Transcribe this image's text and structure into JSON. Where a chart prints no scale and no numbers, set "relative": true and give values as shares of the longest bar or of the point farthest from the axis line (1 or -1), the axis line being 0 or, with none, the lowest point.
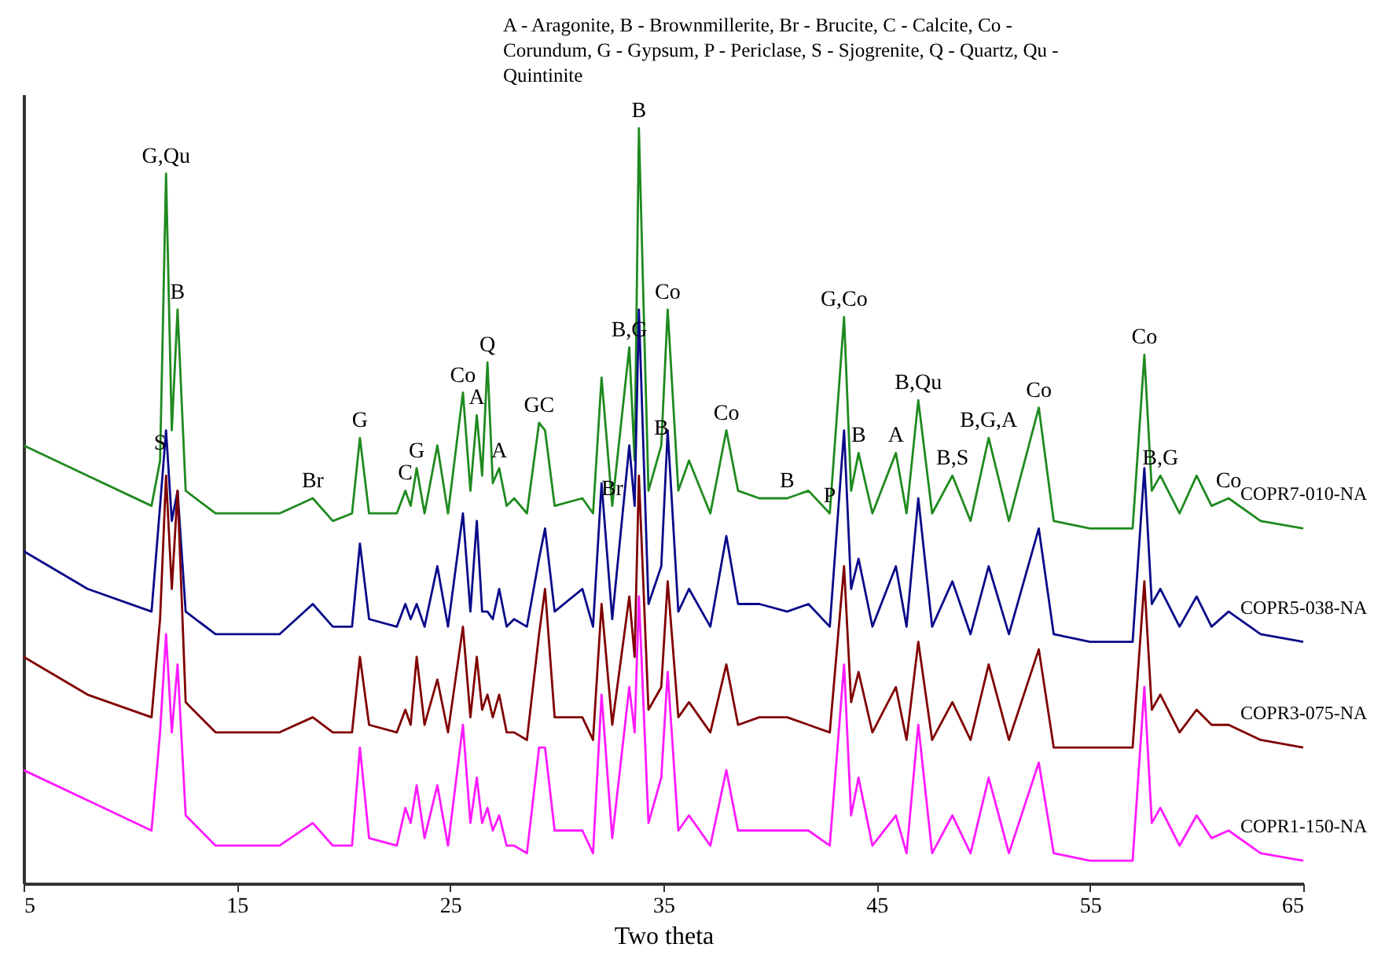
{
  "chart_data": {
    "type": "line",
    "relative": true,
    "xlabel": "Two theta",
    "xlim": [
      5,
      65
    ],
    "xticks": [
      5,
      15,
      25,
      35,
      45,
      55,
      65
    ],
    "grid": false,
    "line_style": "solid",
    "x": [
      5,
      8,
      11,
      11.4,
      11.68,
      11.95,
      12.22,
      12.6,
      14,
      17,
      18.56,
      19.5,
      20.4,
      20.77,
      21.2,
      22.5,
      22.9,
      23.15,
      23.43,
      23.8,
      24.4,
      24.9,
      25.6,
      25.95,
      26.25,
      26.5,
      26.75,
      27.0,
      27.3,
      27.65,
      28.0,
      28.6,
      29.17,
      29.45,
      29.9,
      31.2,
      31.7,
      32.1,
      32.6,
      33.4,
      33.65,
      33.85,
      34.3,
      34.9,
      35.2,
      35.7,
      36.2,
      37.2,
      37.95,
      38.5,
      39.5,
      40.8,
      41.8,
      42.8,
      43.47,
      43.8,
      44.15,
      44.8,
      45.9,
      46.4,
      46.95,
      47.6,
      48.55,
      49.4,
      50.25,
      51.2,
      52.6,
      53.3,
      55,
      57,
      57.55,
      57.9,
      58.3,
      59.2,
      60.0,
      60.7,
      61.5,
      63,
      65
    ],
    "series": [
      {
        "name": "COPR7-010-NA",
        "color": "#1f8a1f",
        "values": [
          0.58,
          0.54,
          0.5,
          0.56,
          0.94,
          0.6,
          0.76,
          0.52,
          0.49,
          0.49,
          0.51,
          0.48,
          0.49,
          0.59,
          0.49,
          0.49,
          0.52,
          0.5,
          0.55,
          0.49,
          0.58,
          0.49,
          0.65,
          0.52,
          0.62,
          0.54,
          0.69,
          0.53,
          0.55,
          0.5,
          0.51,
          0.49,
          0.61,
          0.6,
          0.5,
          0.51,
          0.49,
          0.67,
          0.5,
          0.71,
          0.56,
          1.0,
          0.52,
          0.58,
          0.76,
          0.52,
          0.56,
          0.49,
          0.6,
          0.52,
          0.51,
          0.51,
          0.52,
          0.49,
          0.75,
          0.52,
          0.57,
          0.49,
          0.57,
          0.49,
          0.64,
          0.49,
          0.54,
          0.48,
          0.59,
          0.48,
          0.63,
          0.48,
          0.47,
          0.47,
          0.7,
          0.52,
          0.54,
          0.49,
          0.54,
          0.5,
          0.51,
          0.48,
          0.47
        ]
      },
      {
        "name": "COPR5-038-NA",
        "color": "#0a0a8a",
        "values": [
          0.44,
          0.39,
          0.36,
          0.5,
          0.6,
          0.48,
          0.52,
          0.36,
          0.33,
          0.33,
          0.37,
          0.34,
          0.34,
          0.45,
          0.35,
          0.34,
          0.37,
          0.35,
          0.37,
          0.34,
          0.42,
          0.34,
          0.49,
          0.36,
          0.48,
          0.36,
          0.36,
          0.35,
          0.39,
          0.34,
          0.35,
          0.34,
          0.43,
          0.47,
          0.36,
          0.39,
          0.34,
          0.53,
          0.35,
          0.58,
          0.5,
          0.76,
          0.37,
          0.42,
          0.6,
          0.36,
          0.39,
          0.34,
          0.46,
          0.37,
          0.37,
          0.36,
          0.37,
          0.34,
          0.6,
          0.39,
          0.43,
          0.34,
          0.42,
          0.34,
          0.51,
          0.34,
          0.4,
          0.33,
          0.42,
          0.33,
          0.47,
          0.33,
          0.32,
          0.32,
          0.55,
          0.37,
          0.39,
          0.34,
          0.38,
          0.34,
          0.36,
          0.33,
          0.32
        ]
      },
      {
        "name": "COPR3-075-NA",
        "color": "#800000",
        "values": [
          0.3,
          0.25,
          0.22,
          0.35,
          0.54,
          0.39,
          0.52,
          0.24,
          0.2,
          0.2,
          0.22,
          0.2,
          0.2,
          0.3,
          0.21,
          0.2,
          0.23,
          0.21,
          0.3,
          0.21,
          0.27,
          0.2,
          0.34,
          0.22,
          0.3,
          0.23,
          0.25,
          0.22,
          0.25,
          0.2,
          0.2,
          0.19,
          0.33,
          0.39,
          0.22,
          0.22,
          0.19,
          0.37,
          0.21,
          0.38,
          0.3,
          0.54,
          0.23,
          0.26,
          0.4,
          0.22,
          0.24,
          0.2,
          0.29,
          0.21,
          0.22,
          0.22,
          0.21,
          0.2,
          0.42,
          0.24,
          0.28,
          0.2,
          0.26,
          0.19,
          0.32,
          0.19,
          0.24,
          0.19,
          0.29,
          0.19,
          0.31,
          0.18,
          0.18,
          0.18,
          0.4,
          0.23,
          0.25,
          0.2,
          0.23,
          0.21,
          0.21,
          0.19,
          0.18
        ]
      },
      {
        "name": "COPR1-150-NA",
        "color": "#ff1aff",
        "values": [
          0.15,
          0.11,
          0.07,
          0.2,
          0.33,
          0.2,
          0.29,
          0.09,
          0.05,
          0.05,
          0.08,
          0.05,
          0.05,
          0.18,
          0.06,
          0.05,
          0.1,
          0.08,
          0.13,
          0.06,
          0.13,
          0.05,
          0.21,
          0.08,
          0.14,
          0.08,
          0.1,
          0.07,
          0.09,
          0.05,
          0.05,
          0.04,
          0.18,
          0.18,
          0.07,
          0.07,
          0.04,
          0.25,
          0.06,
          0.26,
          0.2,
          0.38,
          0.08,
          0.14,
          0.28,
          0.07,
          0.09,
          0.05,
          0.15,
          0.07,
          0.07,
          0.07,
          0.07,
          0.05,
          0.29,
          0.09,
          0.14,
          0.05,
          0.09,
          0.04,
          0.21,
          0.04,
          0.09,
          0.04,
          0.14,
          0.04,
          0.16,
          0.04,
          0.03,
          0.03,
          0.26,
          0.08,
          0.1,
          0.05,
          0.09,
          0.06,
          0.07,
          0.04,
          0.03
        ]
      }
    ],
    "annotations": [
      "A - Aragonite, B - Brownmillerite, Br - Brucite, C - Calcite, Co - Corundum, G - Gypsum, P - Periclase, S - Sjogrenite, Q - Quartz, Qu - Quintinite",
      {
        "text": "G,Qu",
        "x": 11.68,
        "y": 0.94
      },
      {
        "text": "S",
        "x": 11.4,
        "y": 0.56
      },
      {
        "text": "B",
        "x": 12.22,
        "y": 0.76
      },
      {
        "text": "Br",
        "x": 18.56,
        "y": 0.51
      },
      {
        "text": "G",
        "x": 20.77,
        "y": 0.59
      },
      {
        "text": "C",
        "x": 22.9,
        "y": 0.52
      },
      {
        "text": "G",
        "x": 23.43,
        "y": 0.55
      },
      {
        "text": "Co",
        "x": 25.6,
        "y": 0.65
      },
      {
        "text": "A",
        "x": 26.25,
        "y": 0.62
      },
      {
        "text": "Q",
        "x": 26.75,
        "y": 0.69
      },
      {
        "text": "A",
        "x": 27.3,
        "y": 0.55
      },
      {
        "text": "GC",
        "x": 29.17,
        "y": 0.61
      },
      {
        "text": "B,G",
        "x": 33.4,
        "y": 0.71
      },
      {
        "text": "B",
        "x": 33.85,
        "y": 1.0
      },
      {
        "text": "Co",
        "x": 35.2,
        "y": 0.76
      },
      {
        "text": "Br",
        "x": 32.6,
        "y": 0.5
      },
      {
        "text": "B",
        "x": 34.9,
        "y": 0.58
      },
      {
        "text": "Co",
        "x": 37.95,
        "y": 0.6
      },
      {
        "text": "B",
        "x": 40.8,
        "y": 0.51
      },
      {
        "text": "P",
        "x": 42.8,
        "y": 0.49
      },
      {
        "text": "G,Co",
        "x": 43.47,
        "y": 0.75
      },
      {
        "text": "B",
        "x": 44.15,
        "y": 0.57
      },
      {
        "text": "A",
        "x": 45.9,
        "y": 0.57
      },
      {
        "text": "B,Qu",
        "x": 46.95,
        "y": 0.64
      },
      {
        "text": "B,S",
        "x": 48.55,
        "y": 0.54
      },
      {
        "text": "B,G,A",
        "x": 50.25,
        "y": 0.59
      },
      {
        "text": "Co",
        "x": 52.6,
        "y": 0.63
      },
      {
        "text": "Co",
        "x": 57.55,
        "y": 0.7
      },
      {
        "text": "B,G",
        "x": 58.3,
        "y": 0.54
      },
      {
        "text": "Co",
        "x": 61.5,
        "y": 0.51
      }
    ]
  }
}
